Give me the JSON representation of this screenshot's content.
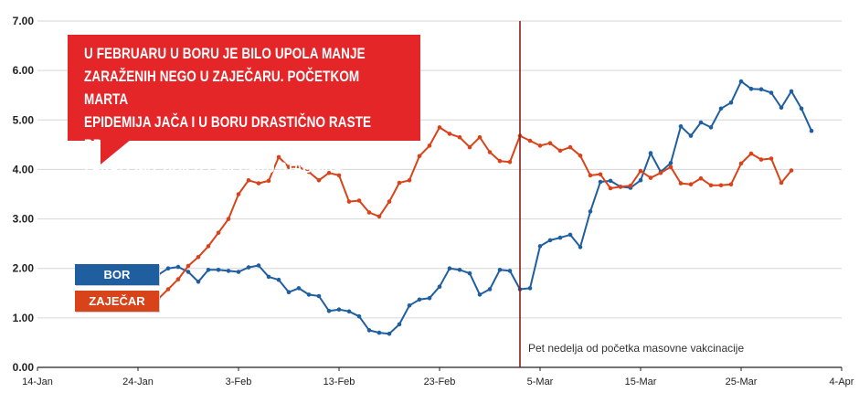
{
  "callout": {
    "lines": [
      "U FEBRUARU U BORU JE BILO UPOLA MANJE",
      "ZARAŽENIH NEGO U ZAJEČARU. POČETKOM MARTA",
      "EPIDEMIJA JAČA I U BORU DRASTIČNO RASTE BROJ",
      "ZARAŽENIH, DOK U ZAJEČARU STAGNIRA"
    ],
    "color": "#e52629"
  },
  "chart_data": {
    "type": "line",
    "title": "",
    "xlabel": "",
    "ylabel": "",
    "ylim": [
      0,
      7
    ],
    "yticks": [
      "0.00",
      "1.00",
      "2.00",
      "3.00",
      "4.00",
      "5.00",
      "6.00",
      "7.00"
    ],
    "xticks": [
      "14-Jan",
      "24-Jan",
      "3-Feb",
      "13-Feb",
      "23-Feb",
      "5-Mar",
      "15-Mar",
      "25-Mar",
      "4-Apr"
    ],
    "x_start": "2021-01-26",
    "grid": true,
    "legend_placement": "left",
    "series": [
      {
        "name": "BOR",
        "color": "#1f5fa0",
        "values": [
          1.87,
          2.0,
          2.03,
          1.93,
          1.73,
          1.97,
          1.97,
          1.95,
          1.93,
          2.02,
          2.06,
          1.83,
          1.77,
          1.52,
          1.6,
          1.47,
          1.44,
          1.14,
          1.17,
          1.13,
          1.03,
          0.75,
          0.7,
          0.68,
          0.87,
          1.25,
          1.37,
          1.4,
          1.63,
          2.0,
          1.97,
          1.9,
          1.47,
          1.58,
          1.97,
          1.95,
          1.58,
          1.6,
          2.45,
          2.57,
          2.62,
          2.68,
          2.43,
          3.15,
          3.75,
          3.77,
          3.65,
          3.63,
          3.78,
          4.33,
          3.95,
          4.13,
          4.87,
          4.68,
          4.95,
          4.85,
          5.23,
          5.35,
          5.78,
          5.63,
          5.62,
          5.55,
          5.25,
          5.58,
          5.23,
          4.78
        ]
      },
      {
        "name": "ZAJEČAR",
        "color": "#d9431a",
        "values": [
          1.38,
          1.58,
          1.78,
          2.05,
          2.23,
          2.45,
          2.72,
          3.0,
          3.5,
          3.78,
          3.72,
          3.77,
          4.25,
          4.05,
          4.05,
          3.95,
          3.78,
          3.93,
          3.88,
          3.35,
          3.37,
          3.13,
          3.05,
          3.35,
          3.73,
          3.78,
          4.27,
          4.48,
          4.85,
          4.72,
          4.65,
          4.45,
          4.65,
          4.35,
          4.17,
          4.15,
          4.68,
          4.58,
          4.48,
          4.53,
          4.38,
          4.45,
          4.28,
          3.88,
          3.9,
          3.62,
          3.65,
          3.67,
          3.97,
          3.83,
          3.93,
          4.05,
          3.72,
          3.7,
          3.82,
          3.68,
          3.68,
          3.7,
          4.12,
          4.32,
          4.2,
          4.22,
          3.73,
          3.98
        ]
      }
    ],
    "annotation": {
      "text": "Pet nedelja od početka masovne vakcinacije",
      "date": "2021-03-03",
      "color": "#8b1a1a"
    }
  }
}
